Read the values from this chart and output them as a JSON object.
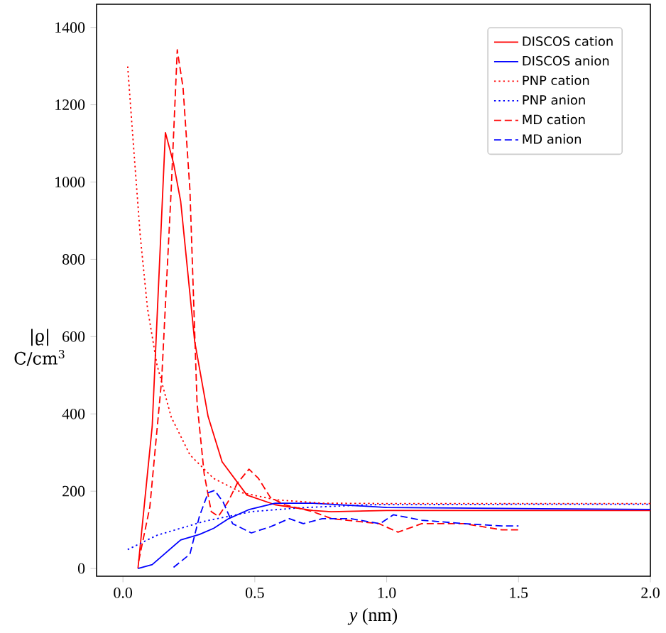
{
  "chart_data": {
    "type": "line",
    "xlabel": "*y* (nm)",
    "ylabel": "|ϱ| C/cm$^{3}$",
    "xlim": [
      -0.1,
      2.0
    ],
    "ylim": [
      -20,
      1460
    ],
    "xticks": [
      {
        "value": 0.0,
        "label": "0.0"
      },
      {
        "value": 0.5,
        "label": "0.5"
      },
      {
        "value": 1.0,
        "label": "1.0"
      },
      {
        "value": 1.5,
        "label": "1.5"
      },
      {
        "value": 2.0,
        "label": "2.0"
      }
    ],
    "yticks": [
      0,
      200,
      400,
      600,
      800,
      1000,
      1200,
      1400
    ],
    "grid": false,
    "legend": "top right",
    "marker": "none",
    "series": [
      {
        "name": "DISCOS cation",
        "color": "#ff0000",
        "line_style": "solid",
        "x": [
          0.057,
          0.111,
          0.161,
          0.192,
          0.219,
          0.272,
          0.323,
          0.376,
          0.47,
          0.577,
          0.72,
          0.79,
          1.0,
          1.5,
          2.0
        ],
        "values": [
          0,
          368,
          1128,
          1048,
          950,
          588,
          393,
          276,
          190,
          165,
          150,
          147,
          150,
          150,
          150
        ]
      },
      {
        "name": "DISCOS anion",
        "color": "#0000ff",
        "line_style": "solid",
        "x": [
          0.057,
          0.111,
          0.219,
          0.29,
          0.344,
          0.401,
          0.48,
          0.577,
          0.72,
          1.0,
          1.5,
          2.0
        ],
        "values": [
          0,
          10,
          74,
          88,
          104,
          129,
          153,
          169,
          169,
          158,
          155,
          153
        ]
      },
      {
        "name": "PNP cation",
        "color": "#ff0000",
        "line_style": "dotted",
        "x": [
          0.018,
          0.039,
          0.066,
          0.093,
          0.129,
          0.183,
          0.254,
          0.344,
          0.452,
          0.577,
          0.756,
          1.0,
          1.5,
          2.0
        ],
        "values": [
          1299,
          1103,
          858,
          674,
          527,
          392,
          294,
          233,
          196,
          178,
          169,
          168,
          168,
          168
        ]
      },
      {
        "name": "PNP anion",
        "color": "#0000ff",
        "line_style": "dotted",
        "x": [
          0.018,
          0.129,
          0.308,
          0.487,
          0.667,
          0.935,
          1.5,
          2.0
        ],
        "values": [
          49,
          86,
          122,
          147,
          157,
          165,
          166,
          166
        ]
      },
      {
        "name": "MD cation",
        "color": "#ff0000",
        "line_style": "dashed",
        "x": [
          0.06,
          0.102,
          0.147,
          0.183,
          0.206,
          0.228,
          0.254,
          0.281,
          0.308,
          0.335,
          0.362,
          0.398,
          0.434,
          0.478,
          0.514,
          0.559,
          0.613,
          0.72,
          0.792,
          0.971,
          1.043,
          1.133,
          1.294,
          1.437,
          1.5
        ],
        "values": [
          20,
          159,
          490,
          980,
          1342,
          1244,
          980,
          429,
          245,
          147,
          135,
          172,
          221,
          257,
          233,
          184,
          165,
          147,
          129,
          116,
          94,
          116,
          116,
          100,
          100
        ]
      },
      {
        "name": "MD anion",
        "color": "#0000ff",
        "line_style": "dashed",
        "x": [
          0.192,
          0.254,
          0.29,
          0.323,
          0.348,
          0.38,
          0.416,
          0.487,
          0.559,
          0.631,
          0.684,
          0.756,
          0.864,
          0.975,
          1.025,
          1.133,
          1.294,
          1.437,
          1.5
        ],
        "values": [
          3,
          37,
          135,
          196,
          202,
          172,
          116,
          92,
          108,
          129,
          116,
          129,
          129,
          116,
          139,
          125,
          116,
          110,
          110
        ]
      }
    ]
  }
}
